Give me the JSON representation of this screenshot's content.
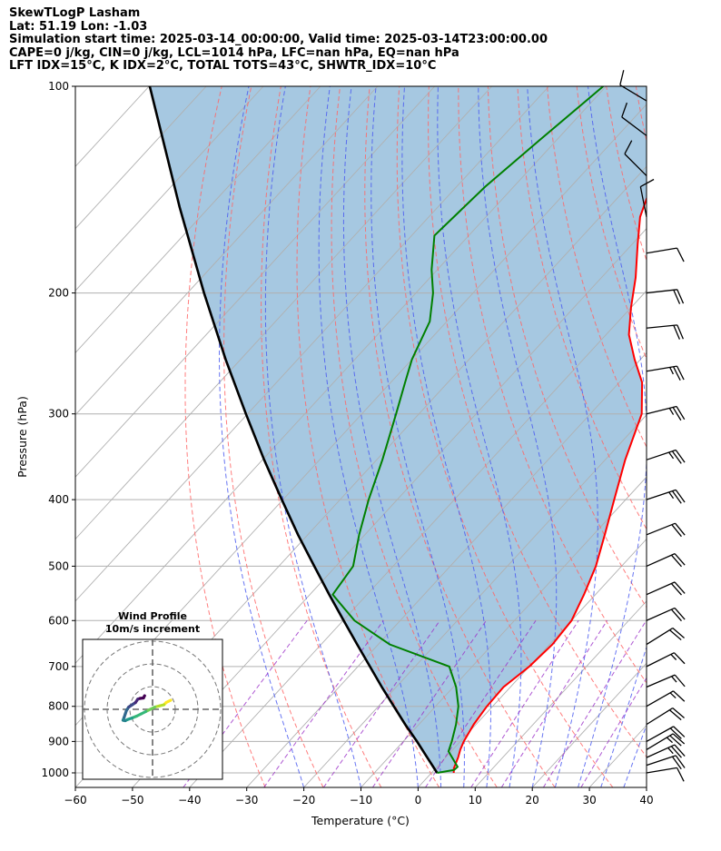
{
  "header": {
    "line1": "SkewTLogP Lasham",
    "line2": "Lat: 51.19   Lon: -1.03",
    "line3": "Simulation start time: 2025-03-14_00:00:00, Valid time: 2025-03-14T23:00:00.00",
    "line4": "CAPE=0 j/kg, CIN=0 j/kg, LCL=1014 hPa, LFC=nan hPa, EQ=nan hPa",
    "line5": "LFT IDX=15$^\\circ$C, K IDX=2$^\\circ$C, TOTAL TOTS=43$^\\circ$C, SHWTR_IDX=10$^\\circ$C"
  },
  "colors": {
    "temperature": "#ff0000",
    "dewpoint": "#008000",
    "parcel": "#000000",
    "fill": "#a1c5df",
    "dry_adiabat": "#ff6666",
    "moist_adiabat": "#4b5cf0",
    "mixing_ratio": "#9b30c8",
    "isotherm": "#b0b0b0"
  },
  "chart_data": {
    "type": "line",
    "subtype": "skew-T log-P",
    "xlabel": "Temperature ($^\\circ$C)",
    "ylabel": "Pressure (hPa)",
    "xlim": [
      -60,
      40
    ],
    "ylim": [
      1050,
      100
    ],
    "x_ticks": [
      "−60",
      "−50",
      "−40",
      "−30",
      "−20",
      "−10",
      "0",
      "10",
      "20",
      "30",
      "40"
    ],
    "y_ticks": [
      "100",
      "200",
      "300",
      "400",
      "500",
      "600",
      "700",
      "800",
      "900",
      "1000"
    ],
    "grid": true,
    "series": [
      {
        "key": "temperature",
        "points": [
          [
            1000,
            3.9
          ],
          [
            985,
            3.2
          ],
          [
            950,
            2.2
          ],
          [
            925,
            1.3
          ],
          [
            900,
            0.6
          ],
          [
            850,
            -0.4
          ],
          [
            800,
            -1.0
          ],
          [
            750,
            -1.2
          ],
          [
            700,
            0.0
          ],
          [
            650,
            0.5
          ],
          [
            600,
            0.0
          ],
          [
            550,
            -2.0
          ],
          [
            500,
            -4.5
          ],
          [
            450,
            -8.0
          ],
          [
            400,
            -12.0
          ],
          [
            350,
            -16.5
          ],
          [
            300,
            -21.0
          ],
          [
            270,
            -26.0
          ],
          [
            250,
            -31.0
          ],
          [
            230,
            -36.0
          ],
          [
            210,
            -40.0
          ],
          [
            190,
            -44.0
          ],
          [
            170,
            -49.0
          ],
          [
            155,
            -53.0
          ],
          [
            140,
            -56.0
          ],
          [
            128,
            -58.0
          ],
          [
            115,
            -61.5
          ],
          [
            100,
            -65.0
          ]
        ]
      },
      {
        "key": "dewpoint",
        "points": [
          [
            1000,
            1.0
          ],
          [
            990,
            3.5
          ],
          [
            980,
            3.6
          ],
          [
            960,
            2.0
          ],
          [
            930,
            -0.5
          ],
          [
            900,
            -1.5
          ],
          [
            850,
            -3.5
          ],
          [
            800,
            -6.0
          ],
          [
            750,
            -9.5
          ],
          [
            700,
            -14.0
          ],
          [
            650,
            -28.0
          ],
          [
            600,
            -38.0
          ],
          [
            550,
            -46.0
          ],
          [
            500,
            -47.0
          ],
          [
            450,
            -51.0
          ],
          [
            400,
            -55.0
          ],
          [
            350,
            -59.0
          ],
          [
            300,
            -64.0
          ],
          [
            270,
            -67.5
          ],
          [
            250,
            -70.0
          ],
          [
            220,
            -73.0
          ],
          [
            200,
            -77.0
          ],
          [
            185,
            -81.0
          ],
          [
            165,
            -86.0
          ],
          [
            140,
            -85.0
          ],
          [
            120,
            -83.0
          ],
          [
            100,
            -80.5
          ]
        ]
      },
      {
        "key": "parcel",
        "points": [
          [
            1000,
            1.0
          ],
          [
            950,
            -3.2
          ],
          [
            900,
            -7.6
          ],
          [
            850,
            -12.4
          ],
          [
            800,
            -17.3
          ],
          [
            750,
            -22.5
          ],
          [
            700,
            -27.9
          ],
          [
            650,
            -33.7
          ],
          [
            600,
            -39.9
          ],
          [
            550,
            -46.6
          ],
          [
            500,
            -53.8
          ],
          [
            450,
            -61.7
          ],
          [
            400,
            -70.2
          ],
          [
            350,
            -79.7
          ],
          [
            300,
            -90.3
          ],
          [
            250,
            -102.6
          ],
          [
            200,
            -117.1
          ],
          [
            150,
            -135.2
          ],
          [
            100,
            -159.9
          ]
        ]
      }
    ],
    "annotations": [
      "shaded region between environmental temperature and parcel path"
    ],
    "wind_barbs": [
      {
        "p": 1000,
        "u": 6,
        "v": 1
      },
      {
        "p": 975,
        "u": 9,
        "v": 3
      },
      {
        "p": 950,
        "u": 11,
        "v": 5
      },
      {
        "p": 925,
        "u": 10,
        "v": 6
      },
      {
        "p": 900,
        "u": 9,
        "v": 5
      },
      {
        "p": 850,
        "u": 8,
        "v": 5
      },
      {
        "p": 800,
        "u": 7,
        "v": 4
      },
      {
        "p": 750,
        "u": 7,
        "v": 3
      },
      {
        "p": 700,
        "u": 6,
        "v": 3
      },
      {
        "p": 650,
        "u": 8,
        "v": 5
      },
      {
        "p": 600,
        "u": 9,
        "v": 4
      },
      {
        "p": 550,
        "u": 9,
        "v": 4
      },
      {
        "p": 500,
        "u": 9,
        "v": 4
      },
      {
        "p": 450,
        "u": 10,
        "v": 4
      },
      {
        "p": 400,
        "u": 12,
        "v": 4
      },
      {
        "p": 350,
        "u": 12,
        "v": 4
      },
      {
        "p": 300,
        "u": 12,
        "v": 3
      },
      {
        "p": 260,
        "u": 12,
        "v": 2
      },
      {
        "p": 225,
        "u": 10,
        "v": 1
      },
      {
        "p": 200,
        "u": 9,
        "v": 1
      },
      {
        "p": 175,
        "u": 6,
        "v": 1
      },
      {
        "p": 155,
        "u": -1,
        "v": 5
      },
      {
        "p": 135,
        "u": -4,
        "v": 4
      },
      {
        "p": 118,
        "u": -4,
        "v": 3
      },
      {
        "p": 105,
        "u": -5,
        "v": 3
      }
    ],
    "hodograph": {
      "title": "Wind Profile",
      "subtitle": "10m/s increment",
      "rings": [
        10,
        20,
        30
      ],
      "points": [
        [
          8.0,
          4.0
        ],
        [
          7.0,
          3.5
        ],
        [
          6.0,
          3.0
        ],
        [
          5.0,
          2.0
        ],
        [
          3.0,
          1.5
        ],
        [
          1.0,
          1.0
        ],
        [
          -1.0,
          0.0
        ],
        [
          -3.0,
          -1.0
        ],
        [
          -5.0,
          -2.0
        ],
        [
          -7.0,
          -3.0
        ],
        [
          -9.0,
          -3.8
        ],
        [
          -11.0,
          -4.5
        ],
        [
          -12.0,
          -5.0
        ],
        [
          -13.0,
          -4.8
        ],
        [
          -12.5,
          -3.5
        ],
        [
          -12.0,
          -2.0
        ],
        [
          -11.5,
          -0.5
        ],
        [
          -10.5,
          1.0
        ],
        [
          -9.0,
          2.0
        ],
        [
          -7.5,
          3.0
        ],
        [
          -6.5,
          4.5
        ],
        [
          -5.5,
          4.8
        ],
        [
          -4.0,
          5.0
        ],
        [
          -3.5,
          6.0
        ]
      ]
    }
  }
}
